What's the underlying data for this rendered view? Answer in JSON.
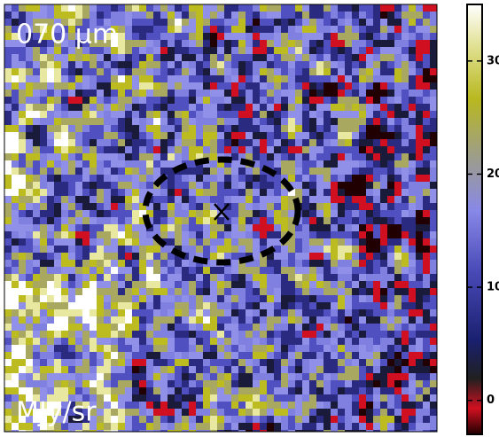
{
  "image": {
    "label": "070 μm",
    "unit": "MJy/sr"
  },
  "colorbar": {
    "range": [
      -3,
      35
    ],
    "ticks": [
      0,
      10,
      20,
      30
    ]
  }
}
